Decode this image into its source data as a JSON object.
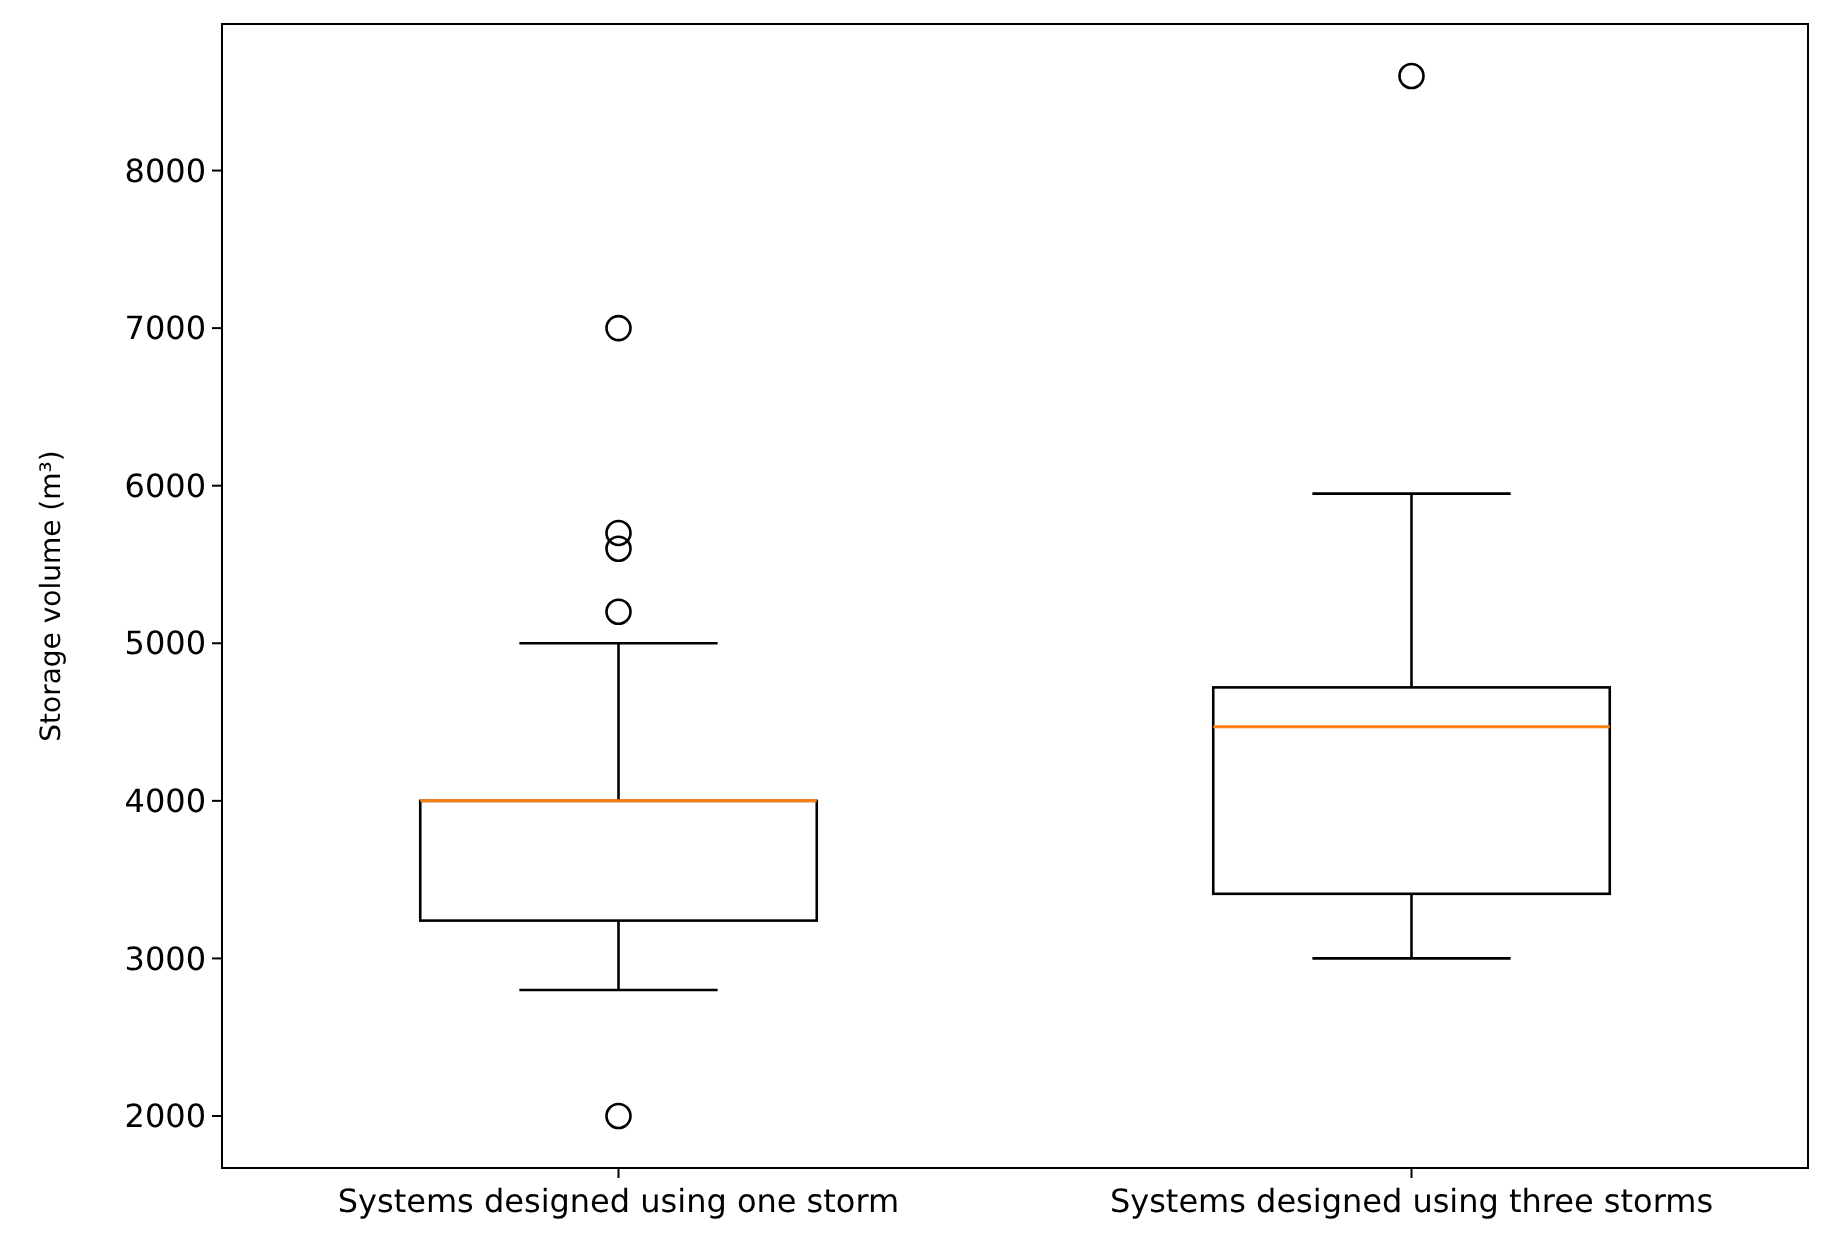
{
  "chart_data": {
    "type": "box",
    "ylabel": "Storage volume (m³)",
    "categories": [
      "Systems designed using one storm",
      "Systems designed using three storms"
    ],
    "boxes": [
      {
        "low": 2800,
        "q1": 3240,
        "median": 4000,
        "q3": 4000,
        "high": 5000,
        "outliers": [
          7000,
          5700,
          5600,
          5200,
          2000
        ]
      },
      {
        "low": 3000,
        "q1": 3410,
        "median": 4470,
        "q3": 4720,
        "high": 5950,
        "outliers": [
          8600
        ]
      }
    ],
    "color": "#000000",
    "ylim": [
      1670,
      8930
    ],
    "yticks": [
      2000,
      3000,
      4000,
      5000,
      6000,
      7000,
      8000
    ],
    "grid": false
  }
}
